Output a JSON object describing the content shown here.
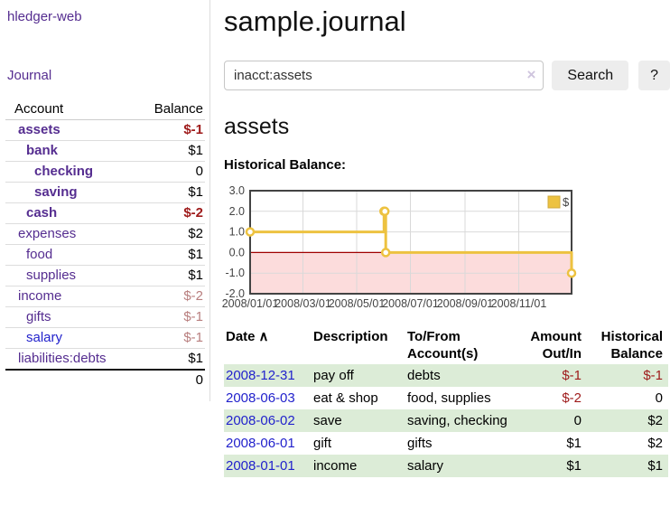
{
  "colors": {
    "purple": "#552d90",
    "blue": "#2222cc",
    "negstrong": "#9e1a1a",
    "negmuted": "#b87e7e",
    "rowgreen": "#dcecd7",
    "btnbg": "#ededed",
    "chart_line": "#EDC240"
  },
  "sidebar": {
    "brand": "hledger-web",
    "journal_label": "Journal",
    "accounts_table": {
      "headers": {
        "account": "Account",
        "balance": "Balance"
      },
      "rows": [
        {
          "name": "assets",
          "balance": "$-1",
          "level": 1,
          "bold": true,
          "balance_style": "negative-strong"
        },
        {
          "name": "bank",
          "balance": "$1",
          "level": 2,
          "bold": true,
          "balance_style": ""
        },
        {
          "name": "checking",
          "balance": "0",
          "level": 3,
          "bold": true,
          "balance_style": ""
        },
        {
          "name": "saving",
          "balance": "$1",
          "level": 3,
          "bold": true,
          "balance_style": ""
        },
        {
          "name": "cash",
          "balance": "$-2",
          "level": 2,
          "bold": true,
          "balance_style": "negative-strong"
        },
        {
          "name": "expenses",
          "balance": "$2",
          "level": 1,
          "bold": false,
          "balance_style": ""
        },
        {
          "name": "food",
          "balance": "$1",
          "level": 2,
          "bold": false,
          "balance_style": ""
        },
        {
          "name": "supplies",
          "balance": "$1",
          "level": 2,
          "bold": false,
          "balance_style": ""
        },
        {
          "name": "income",
          "balance": "$-2",
          "level": 1,
          "bold": false,
          "balance_style": "negative-muted"
        },
        {
          "name": "gifts",
          "balance": "$-1",
          "level": 2,
          "bold": false,
          "balance_style": "negative-muted"
        },
        {
          "name": "salary",
          "balance": "$-1",
          "level": 2,
          "bold": false,
          "balance_style": "negative-muted",
          "link_color": "blue"
        },
        {
          "name": "liabilities:debts",
          "balance": "$1",
          "level": 1,
          "bold": false,
          "balance_style": ""
        }
      ],
      "total": "0"
    }
  },
  "header": {
    "title": "sample.journal"
  },
  "search": {
    "query": "inacct:assets",
    "clear_icon": "×",
    "button_label": "Search",
    "help_label": "?"
  },
  "main": {
    "account_heading": "assets",
    "chart_heading": "Historical Balance:"
  },
  "chart_data": {
    "type": "line",
    "style": "steps",
    "title": "Historical Balance:",
    "series": [
      {
        "name": "$",
        "color": "#EDC240",
        "points": [
          [
            "2008-01-01",
            1
          ],
          [
            "2008-06-01",
            2
          ],
          [
            "2008-06-02",
            2
          ],
          [
            "2008-06-03",
            0
          ],
          [
            "2008-12-31",
            -1
          ]
        ]
      }
    ],
    "xlim": [
      "2008-01-01",
      "2008-12-31"
    ],
    "ylim": [
      -2,
      3
    ],
    "x_ticks": [
      {
        "value": "2008-01-01",
        "label": "2008/01/01"
      },
      {
        "value": "2008-03-01",
        "label": "2008/03/01"
      },
      {
        "value": "2008-05-01",
        "label": "2008/05/01"
      },
      {
        "value": "2008-07-01",
        "label": "2008/07/01"
      },
      {
        "value": "2008-09-01",
        "label": "2008/09/01"
      },
      {
        "value": "2008-11-01",
        "label": "2008/11/01"
      }
    ],
    "y_ticks": [
      {
        "value": 3,
        "label": "3.0"
      },
      {
        "value": 2,
        "label": "2.0"
      },
      {
        "value": 1,
        "label": "1.0"
      },
      {
        "value": 0,
        "label": "0.0"
      },
      {
        "value": -1,
        "label": "-1.0"
      },
      {
        "value": -2,
        "label": "-2.0"
      }
    ],
    "legend": {
      "position": "top-right",
      "label": "$"
    },
    "grid": true,
    "colors": {
      "grid": "#d9d9d9",
      "border": "#434343",
      "zero_line": "#a00000",
      "negative_region": "#fcdcdc",
      "marker_fill": "#ffffff",
      "tick_text": "#444444"
    }
  },
  "register": {
    "columns": [
      {
        "lines": [
          "Date"
        ],
        "align": "left",
        "sort_icon": "∧",
        "sortable": true
      },
      {
        "lines": [
          "Description"
        ],
        "align": "left"
      },
      {
        "lines": [
          "To/From",
          "Account(s)"
        ],
        "align": "left"
      },
      {
        "lines": [
          "Amount",
          "Out/In"
        ],
        "align": "right"
      },
      {
        "lines": [
          "Historical",
          "Balance"
        ],
        "align": "right"
      }
    ],
    "rows": [
      {
        "date": "2008-12-31",
        "description": "pay off",
        "accounts": "debts",
        "amount": "$-1",
        "amount_negative": true,
        "balance": "$-1",
        "balance_negative": true
      },
      {
        "date": "2008-06-03",
        "description": "eat & shop",
        "accounts": "food, supplies",
        "amount": "$-2",
        "amount_negative": true,
        "balance": "0",
        "balance_negative": false
      },
      {
        "date": "2008-06-02",
        "description": "save",
        "accounts": "saving, checking",
        "amount": "0",
        "amount_negative": false,
        "balance": "$2",
        "balance_negative": false
      },
      {
        "date": "2008-06-01",
        "description": "gift",
        "accounts": "gifts",
        "amount": "$1",
        "amount_negative": false,
        "balance": "$2",
        "balance_negative": false
      },
      {
        "date": "2008-01-01",
        "description": "income",
        "accounts": "salary",
        "amount": "$1",
        "amount_negative": false,
        "balance": "$1",
        "balance_negative": false
      }
    ]
  }
}
